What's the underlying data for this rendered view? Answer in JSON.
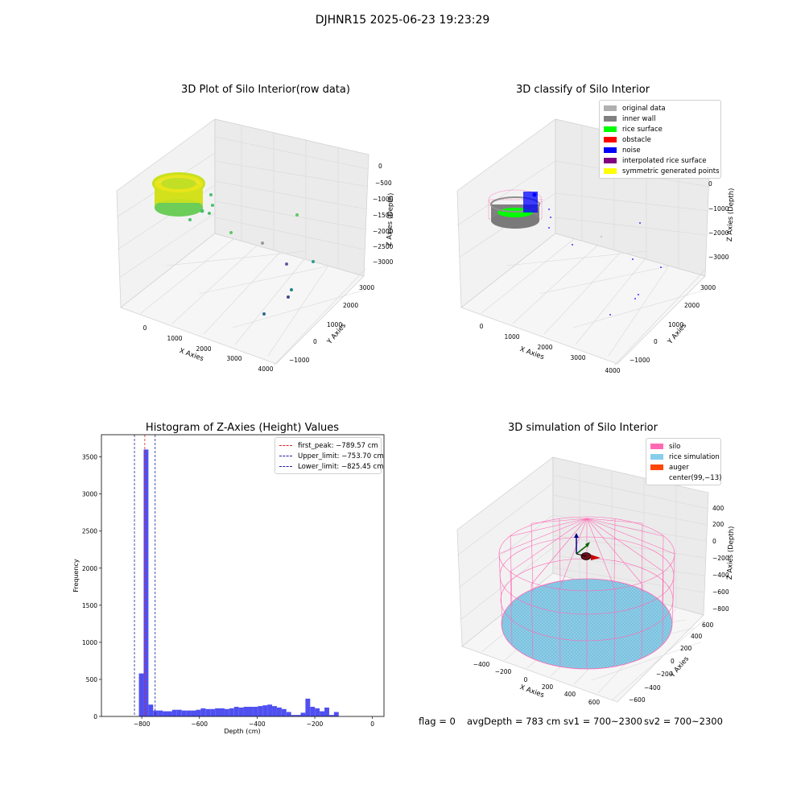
{
  "suptitle": "DJHNR15 2025-06-23 19:23:29",
  "footer": {
    "flag": "flag = 0",
    "avg_depth": "avgDepth = 783 cm",
    "sv1": "sv1 = 700~2300",
    "sv2": "sv2 = 700~2300"
  },
  "colors": {
    "histogram_bar": "#5050f0",
    "first_peak": "#d62728",
    "upper_limit": "#1f1f9f",
    "lower_limit": "#1f1f9f",
    "silo": "#ff69b4",
    "rice_simulation": "#87ceeb",
    "auger": "#ff4500"
  },
  "chart_data": [
    {
      "type": "scatter",
      "title": "3D Plot of Silo Interior(row data)",
      "xlabel": "X Axies",
      "ylabel": "Y Axies",
      "zlabel": "Z Axies (Depth)",
      "xticks": [
        "0",
        "1000",
        "2000",
        "3000",
        "4000"
      ],
      "yticks": [
        "−1000",
        "0",
        "1000",
        "2000",
        "3000"
      ],
      "zticks": [
        "0",
        "−500",
        "−1000",
        "−1500",
        "−2000",
        "−2500",
        "−3000"
      ],
      "colormap": "viridis"
    },
    {
      "type": "scatter",
      "title": "3D classify of Silo Interior",
      "xlabel": "X Axies",
      "ylabel": "Y Axies",
      "zlabel": "Z Axies (Depth)",
      "xticks": [
        "0",
        "1000",
        "2000",
        "3000",
        "4000"
      ],
      "yticks": [
        "−1000",
        "0",
        "1000",
        "2000",
        "3000"
      ],
      "zticks": [
        "0",
        "−1000",
        "−2000",
        "−3000"
      ],
      "legend": [
        {
          "label": "original data",
          "color": "#b0b0b0"
        },
        {
          "label": "inner wall",
          "color": "#808080"
        },
        {
          "label": "rice surface",
          "color": "#00ff00"
        },
        {
          "label": "obstacle",
          "color": "#ff0000"
        },
        {
          "label": "noise",
          "color": "#0000ff"
        },
        {
          "label": "interpolated rice surface",
          "color": "#800080"
        },
        {
          "label": "symmetric generated points",
          "color": "#ffff00"
        }
      ]
    },
    {
      "type": "bar",
      "title": "Histogram of Z-Axies (Height) Values",
      "xlabel": "Depth (cm)",
      "ylabel": "Frequency",
      "xlim": [
        -940,
        40
      ],
      "ylim": [
        0,
        3800
      ],
      "xticks": [
        {
          "value": -800,
          "label": "−800"
        },
        {
          "value": -600,
          "label": "−600"
        },
        {
          "value": -400,
          "label": "−400"
        },
        {
          "value": -200,
          "label": "−200"
        },
        {
          "value": 0,
          "label": "0"
        }
      ],
      "yticks": [
        {
          "value": 0,
          "label": "0"
        },
        {
          "value": 500,
          "label": "500"
        },
        {
          "value": 1000,
          "label": "1000"
        },
        {
          "value": 1500,
          "label": "1500"
        },
        {
          "value": 2000,
          "label": "2000"
        },
        {
          "value": 2500,
          "label": "2500"
        },
        {
          "value": 3000,
          "label": "3000"
        },
        {
          "value": 3500,
          "label": "3500"
        }
      ],
      "bin_start": -810,
      "bin_width": 16.5,
      "values": [
        580,
        3600,
        160,
        80,
        80,
        70,
        70,
        90,
        90,
        80,
        80,
        80,
        90,
        110,
        100,
        100,
        110,
        110,
        100,
        110,
        130,
        120,
        130,
        130,
        130,
        140,
        150,
        160,
        140,
        120,
        100,
        60,
        20,
        20,
        50,
        240,
        130,
        110,
        70,
        120,
        20,
        60
      ],
      "lines": [
        {
          "label": "first_peak: −789.57 cm",
          "value": -789.57,
          "color": "#d62728"
        },
        {
          "label": "Upper_limit: −753.70 cm",
          "value": -753.7,
          "color": "#1f1f9f"
        },
        {
          "label": "Lower_limit: −825.45 cm",
          "value": -825.45,
          "color": "#1f1f9f"
        }
      ]
    },
    {
      "type": "scatter",
      "title": "3D simulation of Silo Interior",
      "xlabel": "X Axies",
      "ylabel": "Y Axies",
      "zlabel": "Z Axies (Depth)",
      "xticks": [
        "−400",
        "−200",
        "0",
        "200",
        "400",
        "600"
      ],
      "yticks": [
        "−600",
        "−400",
        "−200",
        "0",
        "200",
        "400",
        "600"
      ],
      "zticks": [
        "400",
        "200",
        "0",
        "−200",
        "−400",
        "−600",
        "−800"
      ],
      "legend": [
        {
          "label": "silo",
          "color": "#ff69b4"
        },
        {
          "label": "rice simulation",
          "color": "#87ceeb"
        },
        {
          "label": "auger",
          "color": "#ff4500"
        },
        {
          "label": "center(99,−13)",
          "color": ""
        }
      ]
    }
  ]
}
